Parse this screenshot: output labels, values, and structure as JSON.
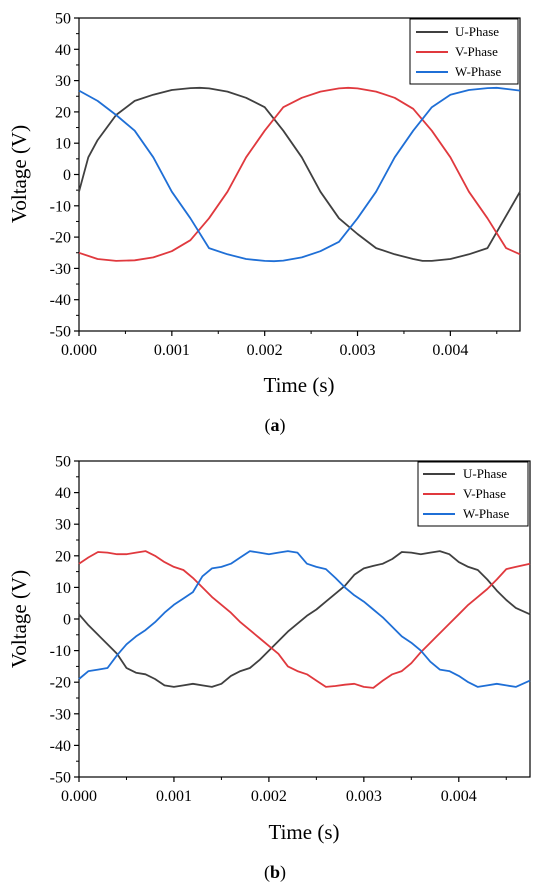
{
  "chart_data": [
    {
      "type": "line",
      "caption_letter": "a",
      "xlabel": "Time (s)",
      "ylabel": "Voltage (V)",
      "xlim": [
        0,
        0.00475
      ],
      "ylim": [
        -50,
        50
      ],
      "xticks": [
        "0.000",
        "0.001",
        "0.002",
        "0.003",
        "0.004"
      ],
      "xtick_values": [
        0,
        0.001,
        0.002,
        0.003,
        0.004
      ],
      "yticks": [
        "50",
        "40",
        "30",
        "20",
        "10",
        "0",
        "-10",
        "-20",
        "-30",
        "-40",
        "-50"
      ],
      "ytick_values": [
        50,
        40,
        30,
        20,
        10,
        0,
        -10,
        -20,
        -30,
        -40,
        -50
      ],
      "grid": false,
      "legend_position": "top-right",
      "series": [
        {
          "name": "U-Phase",
          "color": "#404040",
          "x": [
            0.0,
            0.0001,
            0.0002,
            0.0004,
            0.0006,
            0.0008,
            0.001,
            0.0012,
            0.0013,
            0.0014,
            0.0016,
            0.0018,
            0.002,
            0.0022,
            0.0024,
            0.0026,
            0.0028,
            0.003,
            0.0032,
            0.0034,
            0.0036,
            0.0037,
            0.0038,
            0.004,
            0.0042,
            0.0044,
            0.00475
          ],
          "y": [
            -5.5,
            5.5,
            11,
            19,
            23.5,
            25.5,
            27,
            27.6,
            27.7,
            27.5,
            26.5,
            24.5,
            21.5,
            14,
            5.5,
            -5.5,
            -14,
            -19,
            -23.5,
            -25.5,
            -27,
            -27.6,
            -27.6,
            -27,
            -25.5,
            -23.5,
            -5.5
          ]
        },
        {
          "name": "V-Phase",
          "color": "#e0393e",
          "x": [
            0.0,
            0.0002,
            0.0004,
            0.0006,
            0.0008,
            0.001,
            0.0012,
            0.0014,
            0.0016,
            0.0018,
            0.002,
            0.0022,
            0.0024,
            0.0026,
            0.0028,
            0.0029,
            0.003,
            0.0032,
            0.0034,
            0.0036,
            0.0038,
            0.004,
            0.0042,
            0.0044,
            0.0046,
            0.00475
          ],
          "y": [
            -25,
            -27,
            -27.6,
            -27.4,
            -26.5,
            -24.5,
            -21,
            -14,
            -5.5,
            5.5,
            14,
            21.5,
            24.5,
            26.5,
            27.5,
            27.7,
            27.5,
            26.5,
            24.5,
            21,
            14,
            5.5,
            -5.5,
            -14,
            -23.5,
            -25.5
          ]
        },
        {
          "name": "W-Phase",
          "color": "#1f6fd6",
          "x": [
            0.0,
            0.0002,
            0.0004,
            0.0006,
            0.0008,
            0.001,
            0.0012,
            0.0014,
            0.0016,
            0.0018,
            0.002,
            0.0021,
            0.0022,
            0.0024,
            0.0026,
            0.0028,
            0.003,
            0.0032,
            0.0034,
            0.0036,
            0.0038,
            0.004,
            0.0042,
            0.0044,
            0.0045,
            0.00475
          ],
          "y": [
            26.8,
            23.5,
            19,
            14,
            5.5,
            -5.5,
            -14,
            -23.5,
            -25.5,
            -27,
            -27.6,
            -27.7,
            -27.5,
            -26.5,
            -24.5,
            -21.5,
            -14,
            -5.5,
            5.5,
            14,
            21.5,
            25.5,
            27,
            27.6,
            27.7,
            26.8
          ]
        }
      ]
    },
    {
      "type": "line",
      "caption_letter": "b",
      "xlabel": "Time (s)",
      "ylabel": "Voltage (V)",
      "xlim": [
        0,
        0.00475
      ],
      "ylim": [
        -50,
        50
      ],
      "xticks": [
        "0.000",
        "0.001",
        "0.002",
        "0.003",
        "0.004"
      ],
      "xtick_values": [
        0,
        0.001,
        0.002,
        0.003,
        0.004
      ],
      "yticks": [
        "50",
        "40",
        "30",
        "20",
        "10",
        "0",
        "-10",
        "-20",
        "-30",
        "-40",
        "-50"
      ],
      "ytick_values": [
        50,
        40,
        30,
        20,
        10,
        0,
        -10,
        -20,
        -30,
        -40,
        -50
      ],
      "grid": false,
      "legend_position": "top-right",
      "series": [
        {
          "name": "U-Phase",
          "color": "#404040",
          "x": [
            0.0,
            0.0001,
            0.0002,
            0.0003,
            0.0004,
            0.0005,
            0.0006,
            0.0007,
            0.0008,
            0.0009,
            0.001,
            0.0011,
            0.0012,
            0.0013,
            0.0014,
            0.0015,
            0.0016,
            0.0017,
            0.0018,
            0.0019,
            0.002,
            0.0021,
            0.0022,
            0.0023,
            0.0024,
            0.0025,
            0.0026,
            0.0027,
            0.0028,
            0.0029,
            0.003,
            0.0031,
            0.0032,
            0.0033,
            0.0034,
            0.0035,
            0.0036,
            0.0037,
            0.0038,
            0.0039,
            0.004,
            0.0041,
            0.0042,
            0.0043,
            0.0044,
            0.0045,
            0.0046,
            0.00475
          ],
          "y": [
            1.5,
            -2,
            -5,
            -8,
            -11,
            -15.5,
            -17,
            -17.5,
            -19,
            -21,
            -21.5,
            -21,
            -20.5,
            -21,
            -21.5,
            -20.5,
            -18,
            -16.5,
            -15.5,
            -13,
            -10,
            -7,
            -4,
            -1.5,
            1,
            3,
            5.5,
            8,
            10.5,
            14,
            16,
            16.8,
            17.5,
            19,
            21.2,
            21,
            20.5,
            21,
            21.5,
            20.5,
            18,
            16.5,
            15.5,
            12.5,
            9,
            6,
            3.5,
            1.5
          ]
        },
        {
          "name": "V-Phase",
          "color": "#e0393e",
          "x": [
            0.0,
            0.0001,
            0.0002,
            0.0003,
            0.0004,
            0.0005,
            0.0006,
            0.0007,
            0.0008,
            0.0009,
            0.001,
            0.0011,
            0.0012,
            0.0013,
            0.0014,
            0.0015,
            0.0016,
            0.0017,
            0.0018,
            0.0019,
            0.002,
            0.0021,
            0.0022,
            0.0023,
            0.0024,
            0.0025,
            0.0026,
            0.0027,
            0.0028,
            0.0029,
            0.003,
            0.0031,
            0.0032,
            0.0033,
            0.0034,
            0.0035,
            0.0036,
            0.0037,
            0.0038,
            0.0039,
            0.004,
            0.0041,
            0.0042,
            0.0043,
            0.0044,
            0.0045,
            0.0046,
            0.00475
          ],
          "y": [
            17.5,
            19.5,
            21.2,
            21,
            20.5,
            20.5,
            21,
            21.5,
            20,
            18,
            16.5,
            15.5,
            13,
            10,
            7,
            4.5,
            2,
            -1,
            -3.5,
            -6,
            -8.5,
            -11,
            -15,
            -16.5,
            -17.5,
            -19.5,
            -21.5,
            -21.2,
            -20.8,
            -20.5,
            -21.5,
            -21.8,
            -19.5,
            -17.5,
            -16.5,
            -14,
            -10.5,
            -7.5,
            -4.5,
            -1.5,
            1.5,
            4.5,
            7,
            9.5,
            12.5,
            15.8,
            16.5,
            17.5
          ]
        },
        {
          "name": "W-Phase",
          "color": "#1f6fd6",
          "x": [
            0.0,
            0.0001,
            0.0002,
            0.0003,
            0.0004,
            0.0005,
            0.0006,
            0.0007,
            0.0008,
            0.0009,
            0.001,
            0.0011,
            0.0012,
            0.0013,
            0.0014,
            0.0015,
            0.0016,
            0.0017,
            0.0018,
            0.0019,
            0.002,
            0.0021,
            0.0022,
            0.0023,
            0.0024,
            0.0025,
            0.0026,
            0.0027,
            0.0028,
            0.0029,
            0.003,
            0.0031,
            0.0032,
            0.0033,
            0.0034,
            0.0035,
            0.0036,
            0.0037,
            0.0038,
            0.0039,
            0.004,
            0.0041,
            0.0042,
            0.0043,
            0.0044,
            0.0045,
            0.0046,
            0.00475
          ],
          "y": [
            -19,
            -16.5,
            -16,
            -15.5,
            -11.5,
            -8,
            -5.5,
            -3.5,
            -1,
            2,
            4.5,
            6.5,
            8.5,
            13.5,
            16,
            16.5,
            17.5,
            19.5,
            21.5,
            21,
            20.5,
            21,
            21.5,
            21,
            17.5,
            16.5,
            15.8,
            13,
            10,
            7.5,
            5.5,
            3,
            0.5,
            -2.5,
            -5.5,
            -7.5,
            -10,
            -13.5,
            -16,
            -16.5,
            -18,
            -20,
            -21.5,
            -21,
            -20.5,
            -21,
            -21.5,
            -19.5
          ]
        }
      ]
    }
  ]
}
